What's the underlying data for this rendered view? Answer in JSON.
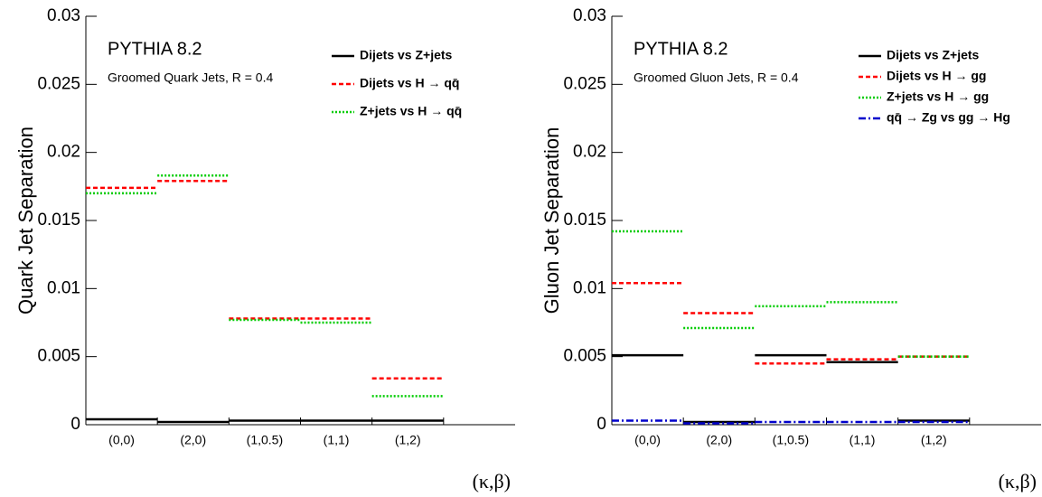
{
  "chart_data": [
    {
      "type": "step",
      "annotations": [
        "PYTHIA 8.2",
        "Groomed Quark Jets, R = 0.4"
      ],
      "y_label": "Quark Jet Separation",
      "x_label": "(κ,β)",
      "categories": [
        "(0,0)",
        "(2,0)",
        "(1,0.5)",
        "(1,1)",
        "(1,2)",
        null
      ],
      "ylim": [
        0,
        0.03
      ],
      "yticks": [
        0,
        0.005,
        0.01,
        0.015,
        0.02,
        0.025,
        0.03
      ],
      "series": [
        {
          "name": "Dijets vs Z+jets",
          "color": "#000000",
          "style": "solid",
          "values": [
            0.0004,
            0.0002,
            0.0003,
            0.0003,
            0.0003,
            null
          ]
        },
        {
          "name": "Dijets vs H → qq̄",
          "color": "#ff0000",
          "style": "dashed",
          "values": [
            0.0174,
            0.0179,
            0.0078,
            0.0078,
            0.0034,
            null
          ]
        },
        {
          "name": "Z+jets vs H → qq̄",
          "color": "#00cc00",
          "style": "dotted",
          "values": [
            0.017,
            0.0183,
            0.0077,
            0.0075,
            0.0021,
            null
          ]
        }
      ]
    },
    {
      "type": "step",
      "annotations": [
        "PYTHIA 8.2",
        "Groomed Gluon Jets, R = 0.4"
      ],
      "y_label": "Gluon Jet Separation",
      "x_label": "(κ,β)",
      "categories": [
        "(0,0)",
        "(2,0)",
        "(1,0.5)",
        "(1,1)",
        "(1,2)",
        null
      ],
      "ylim": [
        0,
        0.03
      ],
      "yticks": [
        0,
        0.005,
        0.01,
        0.015,
        0.02,
        0.025,
        0.03
      ],
      "series": [
        {
          "name": "Dijets vs Z+jets",
          "color": "#000000",
          "style": "solid",
          "values": [
            0.0051,
            0.0002,
            0.0051,
            0.0046,
            0.0003,
            null
          ]
        },
        {
          "name": "Dijets vs H → gg",
          "color": "#ff0000",
          "style": "dashed",
          "values": [
            0.0104,
            0.0082,
            0.0045,
            0.0048,
            0.005,
            null
          ]
        },
        {
          "name": "Z+jets vs H → gg",
          "color": "#00cc00",
          "style": "dotted",
          "values": [
            0.0142,
            0.0071,
            0.0087,
            0.009,
            0.005,
            null
          ]
        },
        {
          "name": "qq̄ → Zg vs gg → Hg",
          "color": "#0000cc",
          "style": "dashdot",
          "values": [
            0.0003,
            0.0001,
            0.0002,
            0.0002,
            0.0002,
            null
          ]
        }
      ]
    }
  ]
}
